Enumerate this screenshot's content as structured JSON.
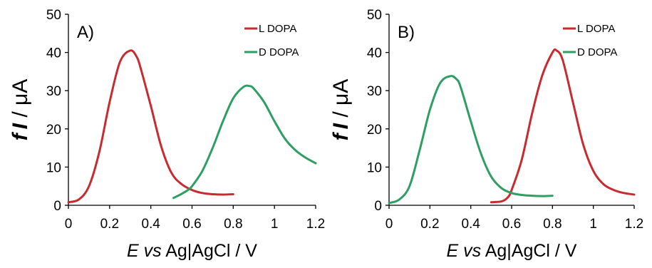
{
  "colors": {
    "l_dopa": "#c82b2f",
    "d_dopa": "#2e9e62",
    "axis": "#000000"
  },
  "chart_data": [
    {
      "type": "line",
      "panel_label": "A)",
      "xlabel": {
        "italic": "E",
        "vs": " vs",
        "rest": " Ag|AgCl / V"
      },
      "ylabel": {
        "f": "f",
        "i": "I",
        "rest": " / μA"
      },
      "xlim": [
        0,
        1.2
      ],
      "ylim": [
        0,
        50
      ],
      "xticks": [
        "0",
        "0.2",
        "0.4",
        "0.6",
        "0.8",
        "1",
        "1.2"
      ],
      "yticks": [
        "0",
        "10",
        "20",
        "30",
        "40",
        "50"
      ],
      "legend_position": "top-right",
      "series": [
        {
          "name": "L DOPA",
          "color_key": "l_dopa",
          "x": [
            0.0,
            0.05,
            0.1,
            0.15,
            0.2,
            0.25,
            0.3,
            0.33,
            0.35,
            0.4,
            0.45,
            0.5,
            0.55,
            0.6,
            0.65,
            0.7,
            0.75,
            0.8
          ],
          "y": [
            0.8,
            1.5,
            5.0,
            14.0,
            27.0,
            37.5,
            40.5,
            39.0,
            36.0,
            26.0,
            15.5,
            8.5,
            5.5,
            4.0,
            3.2,
            2.9,
            2.8,
            2.9
          ]
        },
        {
          "name": "D DOPA",
          "color_key": "d_dopa",
          "x": [
            0.51,
            0.55,
            0.58,
            0.6,
            0.65,
            0.7,
            0.75,
            0.8,
            0.85,
            0.88,
            0.9,
            0.95,
            1.0,
            1.05,
            1.1,
            1.15,
            1.2
          ],
          "y": [
            1.9,
            3.0,
            4.0,
            5.0,
            9.0,
            15.0,
            22.0,
            28.0,
            31.0,
            31.2,
            30.5,
            27.0,
            22.0,
            17.5,
            14.5,
            12.5,
            11.0
          ]
        }
      ]
    },
    {
      "type": "line",
      "panel_label": "B)",
      "xlabel": {
        "italic": "E",
        "vs": " vs",
        "rest": " Ag|AgCl / V"
      },
      "ylabel": {
        "f": "f",
        "i": "I",
        "rest": " / μA"
      },
      "xlim": [
        0,
        1.2
      ],
      "ylim": [
        0,
        50
      ],
      "xticks": [
        "0",
        "0.2",
        "0.4",
        "0.6",
        "0.8",
        "1",
        "1.2"
      ],
      "yticks": [
        "0",
        "10",
        "20",
        "30",
        "40",
        "50"
      ],
      "legend_position": "top-right",
      "series": [
        {
          "name": "L DOPA",
          "color_key": "l_dopa",
          "x": [
            0.5,
            0.55,
            0.58,
            0.6,
            0.65,
            0.7,
            0.75,
            0.8,
            0.82,
            0.85,
            0.9,
            0.95,
            1.0,
            1.05,
            1.1,
            1.15,
            1.2
          ],
          "y": [
            0.8,
            1.0,
            2.0,
            4.0,
            12.0,
            24.0,
            34.0,
            40.0,
            40.5,
            38.0,
            27.0,
            16.0,
            9.0,
            5.5,
            4.0,
            3.2,
            2.8
          ]
        },
        {
          "name": "D DOPA",
          "color_key": "d_dopa",
          "x": [
            0.0,
            0.05,
            0.1,
            0.15,
            0.2,
            0.25,
            0.3,
            0.33,
            0.35,
            0.4,
            0.45,
            0.5,
            0.55,
            0.6,
            0.65,
            0.7,
            0.75,
            0.8
          ],
          "y": [
            0.6,
            1.5,
            5.0,
            14.5,
            25.0,
            32.0,
            33.8,
            33.0,
            31.0,
            22.0,
            13.5,
            7.5,
            4.5,
            3.2,
            2.7,
            2.5,
            2.4,
            2.5
          ]
        }
      ]
    }
  ]
}
